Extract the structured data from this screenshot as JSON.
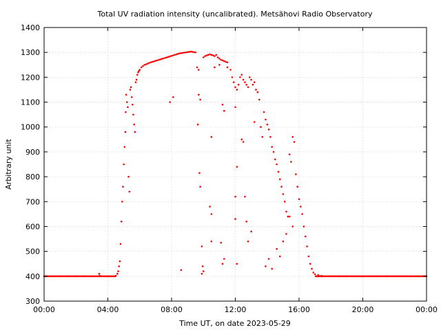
{
  "chart_data": {
    "type": "scatter",
    "title": "Total UV radiation intensity (uncalibrated). Metsähovi Radio Observatory",
    "xlabel": "Time UT, on date 2023-05-29",
    "ylabel": "Arbitrary unit",
    "xlim": [
      0,
      24
    ],
    "ylim": [
      300,
      1400
    ],
    "x_ticks": [
      0,
      4,
      8,
      12,
      16,
      20,
      24
    ],
    "x_tick_labels": [
      "00:00",
      "04:00",
      "08:00",
      "12:00",
      "16:00",
      "20:00",
      "00:00"
    ],
    "y_ticks": [
      300,
      400,
      500,
      600,
      700,
      800,
      900,
      1000,
      1100,
      1200,
      1300,
      1400
    ],
    "y_tick_labels": [
      "300",
      "400",
      "500",
      "600",
      "700",
      "800",
      "900",
      "1000",
      "1100",
      "1200",
      "1300",
      "1400"
    ],
    "grid": true,
    "point_color": "#ff0000",
    "series": [
      {
        "x_unit": "hours",
        "points": [
          [
            0.0,
            400
          ],
          [
            0.5,
            400
          ],
          [
            1.0,
            400
          ],
          [
            1.5,
            400
          ],
          [
            2.0,
            400
          ],
          [
            2.5,
            400
          ],
          [
            3.0,
            400
          ],
          [
            3.45,
            410
          ],
          [
            3.5,
            402
          ],
          [
            4.0,
            400
          ],
          [
            4.5,
            402
          ],
          [
            4.6,
            410
          ],
          [
            4.65,
            420
          ],
          [
            4.7,
            440
          ],
          [
            4.75,
            460
          ],
          [
            4.8,
            530
          ],
          [
            4.85,
            620
          ],
          [
            4.9,
            700
          ],
          [
            4.95,
            760
          ],
          [
            5.0,
            850
          ],
          [
            5.05,
            920
          ],
          [
            5.1,
            980
          ],
          [
            5.12,
            1060
          ],
          [
            5.15,
            1130
          ],
          [
            5.2,
            1100
          ],
          [
            5.25,
            1080
          ],
          [
            5.3,
            800
          ],
          [
            5.35,
            740
          ],
          [
            5.4,
            1150
          ],
          [
            5.45,
            1160
          ],
          [
            5.5,
            1120
          ],
          [
            5.55,
            1090
          ],
          [
            5.6,
            1050
          ],
          [
            5.65,
            1010
          ],
          [
            5.7,
            980
          ],
          [
            5.75,
            1180
          ],
          [
            5.8,
            1190
          ],
          [
            5.85,
            1210
          ],
          [
            5.9,
            1220
          ],
          [
            5.95,
            1225
          ],
          [
            6.0,
            1230
          ],
          [
            6.1,
            1240
          ],
          [
            6.2,
            1245
          ],
          [
            6.3,
            1250
          ],
          [
            6.4,
            1252
          ],
          [
            6.5,
            1255
          ],
          [
            6.6,
            1258
          ],
          [
            6.7,
            1260
          ],
          [
            6.8,
            1262
          ],
          [
            6.9,
            1264
          ],
          [
            7.0,
            1266
          ],
          [
            7.1,
            1268
          ],
          [
            7.2,
            1270
          ],
          [
            7.3,
            1272
          ],
          [
            7.4,
            1274
          ],
          [
            7.5,
            1276
          ],
          [
            7.6,
            1278
          ],
          [
            7.7,
            1280
          ],
          [
            7.8,
            1282
          ],
          [
            7.9,
            1284
          ],
          [
            8.0,
            1286
          ],
          [
            8.1,
            1288
          ],
          [
            8.2,
            1290
          ],
          [
            8.3,
            1292
          ],
          [
            8.4,
            1294
          ],
          [
            8.5,
            1296
          ],
          [
            8.6,
            1297
          ],
          [
            8.7,
            1298
          ],
          [
            8.8,
            1299
          ],
          [
            8.9,
            1300
          ],
          [
            9.0,
            1301
          ],
          [
            9.1,
            1302
          ],
          [
            9.2,
            1303
          ],
          [
            9.3,
            1302
          ],
          [
            9.4,
            1301
          ],
          [
            9.5,
            1300
          ],
          [
            7.9,
            1100
          ],
          [
            8.1,
            1120
          ],
          [
            8.6,
            425
          ],
          [
            9.6,
            1240
          ],
          [
            9.7,
            1230
          ],
          [
            9.65,
            1010
          ],
          [
            9.7,
            1130
          ],
          [
            9.8,
            1110
          ],
          [
            9.75,
            815
          ],
          [
            9.8,
            760
          ],
          [
            9.9,
            520
          ],
          [
            9.95,
            440
          ],
          [
            10.0,
            420
          ],
          [
            9.9,
            410
          ],
          [
            10.0,
            1280
          ],
          [
            10.1,
            1285
          ],
          [
            10.2,
            1288
          ],
          [
            10.3,
            1290
          ],
          [
            10.4,
            1292
          ],
          [
            10.5,
            1290
          ],
          [
            10.6,
            1288
          ],
          [
            10.7,
            1285
          ],
          [
            10.8,
            1290
          ],
          [
            10.9,
            1280
          ],
          [
            11.0,
            1275
          ],
          [
            11.1,
            1270
          ],
          [
            11.2,
            1268
          ],
          [
            11.3,
            1265
          ],
          [
            11.4,
            1262
          ],
          [
            11.5,
            1260
          ],
          [
            10.5,
            960
          ],
          [
            10.4,
            680
          ],
          [
            10.5,
            650
          ],
          [
            10.5,
            540
          ],
          [
            10.7,
            1240
          ],
          [
            11.0,
            1250
          ],
          [
            11.2,
            1090
          ],
          [
            11.3,
            1065
          ],
          [
            11.1,
            535
          ],
          [
            11.2,
            450
          ],
          [
            11.3,
            470
          ],
          [
            11.5,
            1240
          ],
          [
            11.7,
            1230
          ],
          [
            11.8,
            1200
          ],
          [
            11.9,
            1180
          ],
          [
            12.0,
            1160
          ],
          [
            12.1,
            1150
          ],
          [
            12.2,
            1170
          ],
          [
            12.3,
            1200
          ],
          [
            12.4,
            1210
          ],
          [
            12.5,
            1190
          ],
          [
            12.6,
            1180
          ],
          [
            12.7,
            1170
          ],
          [
            12.8,
            1160
          ],
          [
            12.9,
            1200
          ],
          [
            13.0,
            1190
          ],
          [
            13.1,
            1170
          ],
          [
            13.2,
            1180
          ],
          [
            13.3,
            1150
          ],
          [
            13.4,
            1140
          ],
          [
            12.0,
            1080
          ],
          [
            12.0,
            720
          ],
          [
            12.0,
            630
          ],
          [
            12.1,
            840
          ],
          [
            12.1,
            450
          ],
          [
            12.4,
            950
          ],
          [
            12.5,
            940
          ],
          [
            12.6,
            720
          ],
          [
            12.7,
            620
          ],
          [
            12.8,
            540
          ],
          [
            13.0,
            580
          ],
          [
            13.2,
            1020
          ],
          [
            13.5,
            1110
          ],
          [
            13.6,
            1000
          ],
          [
            13.7,
            960
          ],
          [
            13.8,
            1060
          ],
          [
            13.9,
            1030
          ],
          [
            14.0,
            1010
          ],
          [
            14.1,
            990
          ],
          [
            14.2,
            960
          ],
          [
            14.3,
            920
          ],
          [
            14.4,
            900
          ],
          [
            14.5,
            870
          ],
          [
            14.6,
            850
          ],
          [
            14.7,
            820
          ],
          [
            14.8,
            790
          ],
          [
            14.9,
            760
          ],
          [
            15.0,
            730
          ],
          [
            15.1,
            700
          ],
          [
            15.2,
            660
          ],
          [
            15.3,
            640
          ],
          [
            15.4,
            890
          ],
          [
            15.5,
            860
          ],
          [
            15.6,
            960
          ],
          [
            15.7,
            940
          ],
          [
            15.8,
            810
          ],
          [
            15.9,
            760
          ],
          [
            16.0,
            710
          ],
          [
            16.1,
            680
          ],
          [
            16.2,
            650
          ],
          [
            16.3,
            600
          ],
          [
            16.4,
            560
          ],
          [
            16.5,
            520
          ],
          [
            16.6,
            480
          ],
          [
            16.7,
            450
          ],
          [
            16.8,
            430
          ],
          [
            16.9,
            415
          ],
          [
            17.0,
            408
          ],
          [
            17.2,
            405
          ],
          [
            17.4,
            402
          ],
          [
            13.9,
            440
          ],
          [
            14.1,
            470
          ],
          [
            14.3,
            430
          ],
          [
            14.6,
            510
          ],
          [
            14.8,
            480
          ],
          [
            15.0,
            540
          ],
          [
            15.2,
            570
          ],
          [
            15.4,
            640
          ],
          [
            15.6,
            600
          ],
          [
            17.5,
            400
          ],
          [
            18.0,
            400
          ],
          [
            18.5,
            400
          ],
          [
            19.0,
            400
          ],
          [
            19.5,
            400
          ],
          [
            20.0,
            400
          ],
          [
            20.5,
            400
          ],
          [
            21.0,
            400
          ],
          [
            21.5,
            400
          ],
          [
            22.0,
            400
          ],
          [
            22.5,
            400
          ],
          [
            23.0,
            400
          ],
          [
            23.5,
            400
          ],
          [
            24.0,
            400
          ]
        ]
      }
    ]
  }
}
